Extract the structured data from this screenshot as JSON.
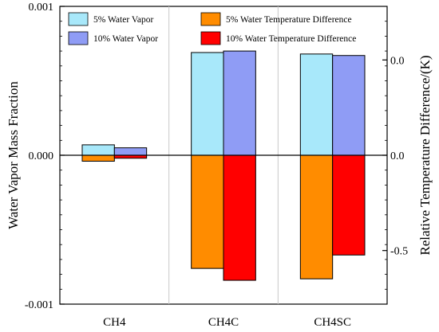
{
  "chart_data": {
    "type": "bar",
    "categories": [
      "CH4",
      "CH4C",
      "CH4SC"
    ],
    "ylabel": "Water Vapor Mass Fraction",
    "y2label": "Relative Temperature Difference/(K)",
    "ylim": [
      -0.001,
      0.001
    ],
    "y_ticks": [
      "0.001",
      "0.000",
      "-0.001"
    ],
    "y2_ticks": [
      "0.0",
      "0.0",
      "-0.5"
    ],
    "legend_position": "top",
    "grid": false,
    "series": [
      {
        "name": "5% Water Vapor",
        "axis": "left",
        "values": [
          7e-05,
          0.00069,
          0.00068
        ],
        "color": "#a8e8fa"
      },
      {
        "name": "10% Water Vapor",
        "axis": "left",
        "values": [
          5e-05,
          0.0007,
          0.00067
        ],
        "color": "#8f9cf5"
      },
      {
        "name": "5% Water Temperature Difference",
        "axis": "left",
        "values": [
          -4e-05,
          -0.00076,
          -0.00083
        ],
        "color": "#ff8c00"
      },
      {
        "name": "10% Water  Temperature Difference",
        "axis": "left",
        "values": [
          -2e-05,
          -0.00084,
          -0.00067
        ],
        "color": "#ff0000"
      }
    ]
  }
}
